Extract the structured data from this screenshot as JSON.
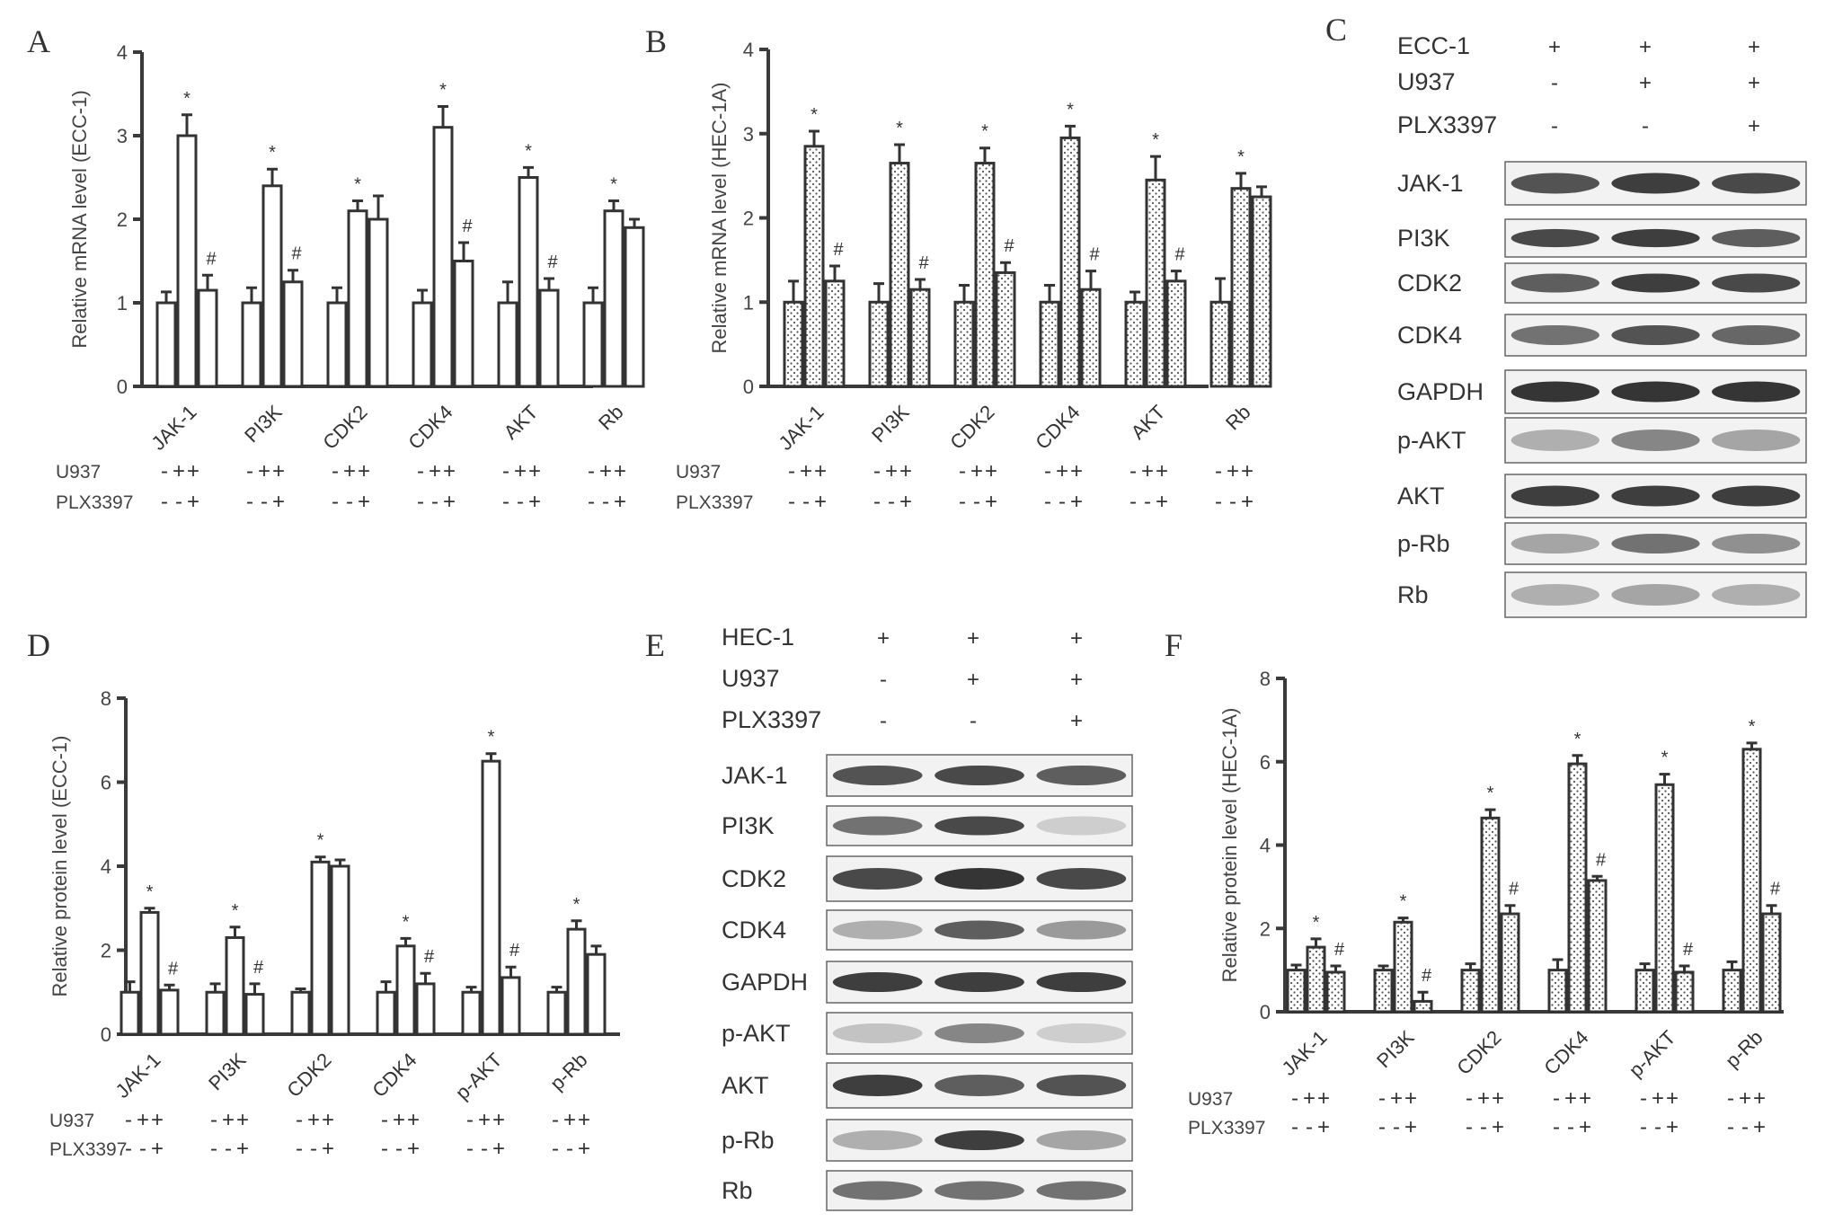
{
  "patterns": {
    "plain": "#ffffff",
    "dotted": "dots"
  },
  "panels": [
    {
      "label": "A",
      "chart_data": {
        "type": "bar",
        "ylabel": "Relative mRNA level (ECC-1)",
        "ylim": [
          0,
          4
        ],
        "yticks": [
          "0",
          "1",
          "2",
          "3",
          "4"
        ],
        "fill": "plain",
        "categories": [
          "JAK-1",
          "PI3K",
          "CDK2",
          "CDK4",
          "AKT",
          "Rb"
        ],
        "series": [
          {
            "values": [
              1.0,
              1.0,
              1.0,
              1.0,
              1.0,
              1.0
            ],
            "errors": [
              0.13,
              0.18,
              0.18,
              0.15,
              0.25,
              0.18
            ]
          },
          {
            "values": [
              3.0,
              2.4,
              2.1,
              3.1,
              2.5,
              2.1
            ],
            "errors": [
              0.25,
              0.2,
              0.12,
              0.25,
              0.12,
              0.12
            ]
          },
          {
            "values": [
              1.15,
              1.25,
              2.0,
              1.5,
              1.15,
              1.9
            ],
            "errors": [
              0.18,
              0.14,
              0.28,
              0.22,
              0.14,
              0.1
            ]
          }
        ],
        "marks": [
          [
            "",
            "*",
            "#"
          ],
          [
            "",
            "*",
            "#"
          ],
          [
            "",
            "*",
            ""
          ],
          [
            "",
            "*",
            "#"
          ],
          [
            "",
            "*",
            "#"
          ],
          [
            "",
            "*",
            ""
          ]
        ],
        "conditions": [
          {
            "name": "U937",
            "signs": [
              "-",
              "+",
              "+"
            ]
          },
          {
            "name": "PLX3397",
            "signs": [
              "-",
              "-",
              "+"
            ]
          }
        ]
      }
    },
    {
      "label": "B",
      "chart_data": {
        "type": "bar",
        "ylabel": "Relative mRNA level (HEC-1A)",
        "ylim": [
          0,
          4
        ],
        "yticks": [
          "0",
          "1",
          "2",
          "3",
          "4"
        ],
        "fill": "dotted",
        "categories": [
          "JAK-1",
          "PI3K",
          "CDK2",
          "CDK4",
          "AKT",
          "Rb"
        ],
        "series": [
          {
            "values": [
              1.0,
              1.0,
              1.0,
              1.0,
              1.0,
              1.0
            ],
            "errors": [
              0.25,
              0.22,
              0.2,
              0.2,
              0.12,
              0.28
            ]
          },
          {
            "values": [
              2.85,
              2.65,
              2.65,
              2.95,
              2.45,
              2.35
            ],
            "errors": [
              0.18,
              0.22,
              0.18,
              0.14,
              0.28,
              0.18
            ]
          },
          {
            "values": [
              1.25,
              1.15,
              1.35,
              1.15,
              1.25,
              2.25
            ],
            "errors": [
              0.18,
              0.12,
              0.12,
              0.22,
              0.12,
              0.12
            ]
          }
        ],
        "marks": [
          [
            "",
            "*",
            "#"
          ],
          [
            "",
            "*",
            "#"
          ],
          [
            "",
            "*",
            "#"
          ],
          [
            "",
            "*",
            "#"
          ],
          [
            "",
            "*",
            "#"
          ],
          [
            "",
            "*",
            ""
          ]
        ],
        "conditions": [
          {
            "name": "U937",
            "signs": [
              "-",
              "+",
              "+"
            ]
          },
          {
            "name": "PLX3397",
            "signs": [
              "-",
              "-",
              "+"
            ]
          }
        ]
      }
    },
    {
      "label": "D",
      "chart_data": {
        "type": "bar",
        "ylabel": "Relative protein level (ECC-1)",
        "ylim": [
          0,
          8
        ],
        "yticks": [
          "0",
          "2",
          "4",
          "6",
          "8"
        ],
        "fill": "plain",
        "categories": [
          "JAK-1",
          "PI3K",
          "CDK2",
          "CDK4",
          "p-AKT",
          "p-Rb"
        ],
        "series": [
          {
            "values": [
              1.0,
              1.0,
              1.0,
              1.0,
              1.0,
              1.0
            ],
            "errors": [
              0.25,
              0.2,
              0.08,
              0.25,
              0.12,
              0.12
            ]
          },
          {
            "values": [
              2.9,
              2.3,
              4.1,
              2.1,
              6.5,
              2.5
            ],
            "errors": [
              0.1,
              0.25,
              0.12,
              0.18,
              0.18,
              0.2
            ]
          },
          {
            "values": [
              1.05,
              0.95,
              4.0,
              1.2,
              1.35,
              1.9
            ],
            "errors": [
              0.12,
              0.25,
              0.15,
              0.25,
              0.25,
              0.2
            ]
          }
        ],
        "marks": [
          [
            "",
            "*",
            "#"
          ],
          [
            "",
            "*",
            "#"
          ],
          [
            "",
            "*",
            ""
          ],
          [
            "",
            "*",
            "#"
          ],
          [
            "",
            "*",
            "#"
          ],
          [
            "",
            "*",
            ""
          ]
        ],
        "conditions": [
          {
            "name": "U937",
            "signs": [
              "-",
              "+",
              "+"
            ]
          },
          {
            "name": "PLX3397",
            "signs": [
              "-",
              "-",
              "+"
            ]
          }
        ]
      }
    },
    {
      "label": "F",
      "chart_data": {
        "type": "bar",
        "ylabel": "Relative protein level (HEC-1A)",
        "ylim": [
          0,
          8
        ],
        "yticks": [
          "0",
          "2",
          "4",
          "6",
          "8"
        ],
        "fill": "dotted",
        "categories": [
          "JAK-1",
          "PI3K",
          "CDK2",
          "CDK4",
          "p-AKT",
          "p-Rb"
        ],
        "series": [
          {
            "values": [
              1.0,
              1.0,
              1.0,
              1.0,
              1.0,
              1.0
            ],
            "errors": [
              0.12,
              0.1,
              0.15,
              0.25,
              0.15,
              0.2
            ]
          },
          {
            "values": [
              1.55,
              2.15,
              4.65,
              5.95,
              5.45,
              6.3
            ],
            "errors": [
              0.2,
              0.1,
              0.2,
              0.2,
              0.25,
              0.15
            ]
          },
          {
            "values": [
              0.95,
              0.25,
              2.35,
              3.15,
              0.95,
              2.35
            ],
            "errors": [
              0.15,
              0.22,
              0.2,
              0.1,
              0.15,
              0.2
            ]
          }
        ],
        "marks": [
          [
            "",
            "*",
            "#"
          ],
          [
            "",
            "*",
            "#"
          ],
          [
            "",
            "*",
            "#"
          ],
          [
            "",
            "*",
            "#"
          ],
          [
            "",
            "*",
            "#"
          ],
          [
            "",
            "*",
            "#"
          ]
        ],
        "conditions": [
          {
            "name": "U937",
            "signs": [
              "-",
              "+",
              "+"
            ]
          },
          {
            "name": "PLX3397",
            "signs": [
              "-",
              "-",
              "+"
            ]
          }
        ]
      }
    }
  ],
  "blots": [
    {
      "label": "C",
      "header": [
        {
          "name": "ECC-1",
          "signs": [
            "+",
            "+",
            "+"
          ]
        },
        {
          "name": "U937",
          "signs": [
            "-",
            "+",
            "+"
          ]
        },
        {
          "name": "PLX3397",
          "signs": [
            "-",
            "-",
            "+"
          ]
        }
      ],
      "proteins": [
        {
          "name": "JAK-1",
          "intensity": [
            0.75,
            0.85,
            0.8
          ]
        },
        {
          "name": "PI3K",
          "intensity": [
            0.8,
            0.85,
            0.7
          ]
        },
        {
          "name": "CDK2",
          "intensity": [
            0.7,
            0.85,
            0.8
          ]
        },
        {
          "name": "CDK4",
          "intensity": [
            0.6,
            0.75,
            0.65
          ]
        },
        {
          "name": "GAPDH",
          "intensity": [
            0.9,
            0.9,
            0.9
          ]
        },
        {
          "name": "p-AKT",
          "intensity": [
            0.3,
            0.5,
            0.35
          ]
        },
        {
          "name": "AKT",
          "intensity": [
            0.85,
            0.85,
            0.85
          ]
        },
        {
          "name": "p-Rb",
          "intensity": [
            0.35,
            0.6,
            0.45
          ]
        },
        {
          "name": "Rb",
          "intensity": [
            0.3,
            0.35,
            0.3
          ]
        }
      ]
    },
    {
      "label": "E",
      "header": [
        {
          "name": "HEC-1",
          "signs": [
            "+",
            "+",
            "+"
          ]
        },
        {
          "name": "U937",
          "signs": [
            "-",
            "+",
            "+"
          ]
        },
        {
          "name": "PLX3397",
          "signs": [
            "-",
            "-",
            "+"
          ]
        }
      ],
      "proteins": [
        {
          "name": "JAK-1",
          "intensity": [
            0.75,
            0.8,
            0.7
          ]
        },
        {
          "name": "PI3K",
          "intensity": [
            0.6,
            0.8,
            0.15
          ]
        },
        {
          "name": "CDK2",
          "intensity": [
            0.8,
            0.9,
            0.8
          ]
        },
        {
          "name": "CDK4",
          "intensity": [
            0.3,
            0.7,
            0.4
          ]
        },
        {
          "name": "GAPDH",
          "intensity": [
            0.85,
            0.85,
            0.85
          ]
        },
        {
          "name": "p-AKT",
          "intensity": [
            0.2,
            0.5,
            0.15
          ]
        },
        {
          "name": "AKT",
          "intensity": [
            0.85,
            0.7,
            0.75
          ]
        },
        {
          "name": "p-Rb",
          "intensity": [
            0.3,
            0.85,
            0.35
          ]
        },
        {
          "name": "Rb",
          "intensity": [
            0.6,
            0.6,
            0.6
          ]
        }
      ]
    }
  ]
}
